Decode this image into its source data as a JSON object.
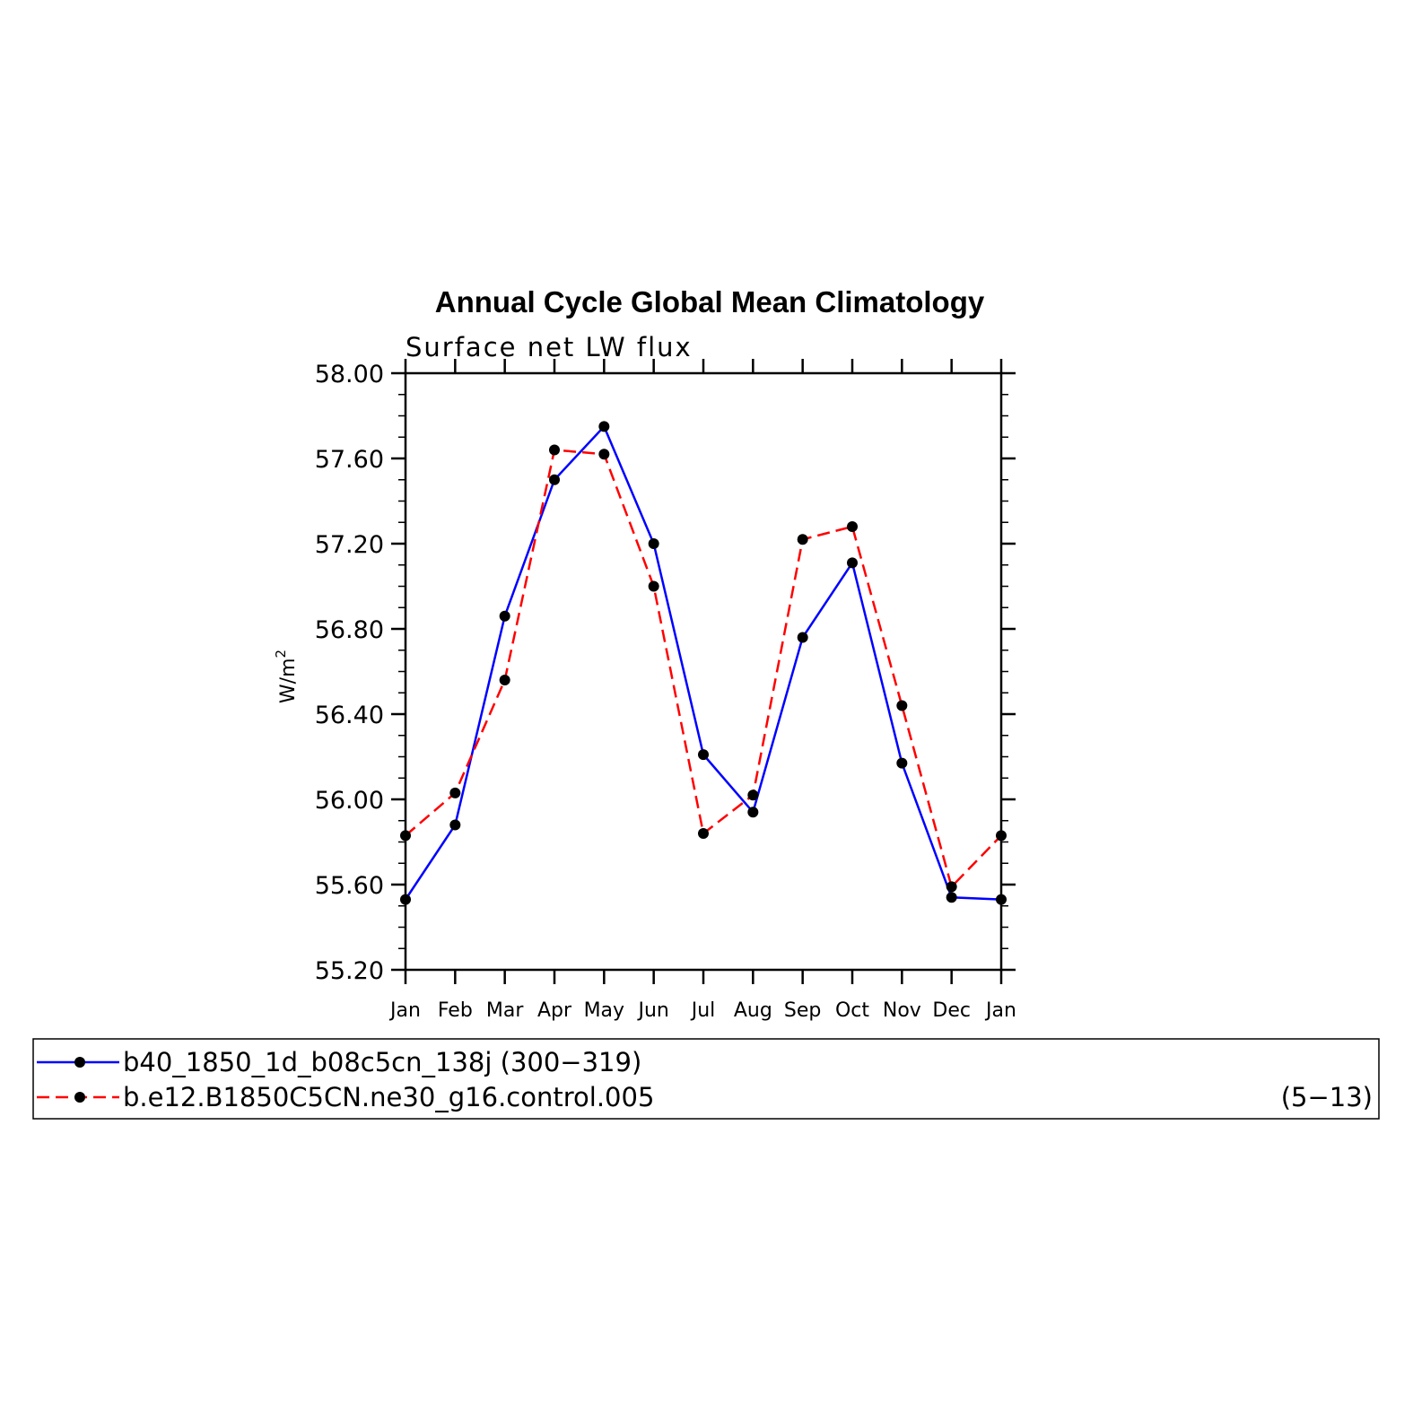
{
  "chart_data": {
    "type": "line",
    "title": "Annual Cycle Global Mean Climatology",
    "subtitle": "Surface net LW flux",
    "ylabel_base": "W/m",
    "ylabel_sup": "2",
    "xlabel": "",
    "categories": [
      "Jan",
      "Feb",
      "Mar",
      "Apr",
      "May",
      "Jun",
      "Jul",
      "Aug",
      "Sep",
      "Oct",
      "Nov",
      "Dec",
      "Jan"
    ],
    "ylim": [
      55.2,
      58.0
    ],
    "yticks": [
      "55.20",
      "55.60",
      "56.00",
      "56.40",
      "56.80",
      "57.20",
      "57.60",
      "58.00"
    ],
    "grid": false,
    "legend_position": "bottom",
    "series": [
      {
        "name": "b40_1850_1d_b08c5cn_138j (300−319)",
        "extra": "",
        "color": "#0000ff",
        "dash": "solid",
        "values": [
          55.53,
          55.88,
          56.86,
          57.5,
          57.75,
          57.2,
          56.21,
          55.94,
          56.76,
          57.11,
          56.17,
          55.54,
          55.53
        ]
      },
      {
        "name": "b.e12.B1850C5CN.ne30_g16.control.005",
        "extra": "(5−13)",
        "color": "#ff0000",
        "dash": "dashed",
        "values": [
          55.83,
          56.03,
          56.56,
          57.64,
          57.62,
          57.0,
          55.84,
          56.02,
          57.22,
          57.28,
          56.44,
          55.59,
          55.83
        ]
      }
    ]
  }
}
